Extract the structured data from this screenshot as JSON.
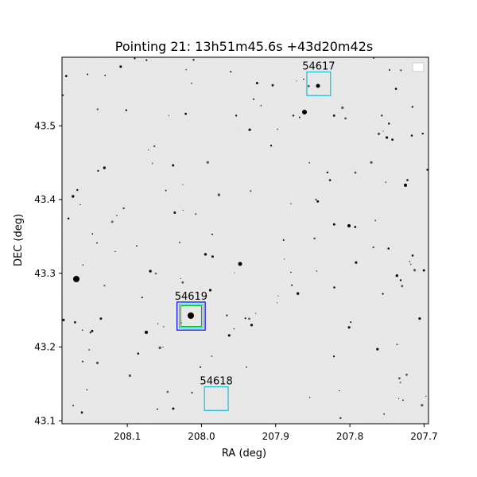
{
  "title": "Pointing 21: 13h51m45.6s +43d20m42s",
  "xlabel": "RA (deg)",
  "ylabel": "DEC (deg)",
  "x_axis": {
    "ticks": [
      {
        "value": 208.1,
        "label": "208.1"
      },
      {
        "value": 208.0,
        "label": "208.0"
      },
      {
        "value": 207.9,
        "label": "207.9"
      },
      {
        "value": 207.8,
        "label": "207.8"
      },
      {
        "value": 207.7,
        "label": "207.7"
      }
    ],
    "range": [
      208.188,
      207.694
    ],
    "inverted": true
  },
  "y_axis": {
    "ticks": [
      {
        "value": 43.1,
        "label": "43.1"
      },
      {
        "value": 43.2,
        "label": "43.2"
      },
      {
        "value": 43.3,
        "label": "43.3"
      },
      {
        "value": 43.4,
        "label": "43.4"
      },
      {
        "value": 43.5,
        "label": "43.5"
      }
    ],
    "range": [
      43.096,
      43.593
    ]
  },
  "targets": [
    {
      "label": "54617",
      "ra": 207.842,
      "dec": 43.557,
      "half_size_deg": 0.016,
      "color": "#17becf"
    },
    {
      "label": "54619",
      "ra": 208.014,
      "dec": 43.242,
      "half_size_deg": 0.019,
      "color": "#0000ff"
    },
    {
      "label": "54618",
      "ra": 207.98,
      "dec": 43.13,
      "half_size_deg": 0.016,
      "color": "#17becf"
    }
  ],
  "inner_boxes": [
    {
      "ra": 208.014,
      "dec": 43.242,
      "half_size_deg": 0.014,
      "color": "#00aa00"
    },
    {
      "ra": 208.014,
      "dec": 43.242,
      "half_size_deg": 0.016,
      "color": "#17becf"
    }
  ],
  "legend": {
    "placement": "top-right",
    "entries": []
  },
  "image_style": "greyscale sky survey image, light grey background with dark point sources"
}
